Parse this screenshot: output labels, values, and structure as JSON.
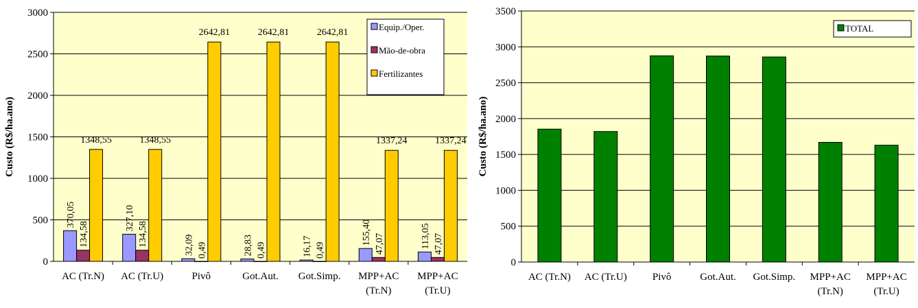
{
  "chart_data": [
    {
      "type": "bar",
      "ylabel": "Custo (R$/ha.ano)",
      "ylim": [
        0,
        3000
      ],
      "yticks": [
        "0",
        "500",
        "1000",
        "1500",
        "2000",
        "2500",
        "3000"
      ],
      "grid": true,
      "legend_position": "top-right",
      "categories": [
        [
          "AC (Tr.N)"
        ],
        [
          "AC (Tr.U)"
        ],
        [
          "Pivô"
        ],
        [
          "Got.Aut."
        ],
        [
          "Got.Simp."
        ],
        [
          "MPP+AC",
          "(Tr.N)"
        ],
        [
          "MPP+AC",
          "(Tr.U)"
        ]
      ],
      "series": [
        {
          "name": "Equip./Oper.",
          "color": "#9999ff",
          "values": [
            370.05,
            327.1,
            32.09,
            28.83,
            16.17,
            155.4,
            113.05
          ],
          "labels": [
            "370,05",
            "327,10",
            "32,09",
            "28,83",
            "16,17",
            "155,40",
            "113,05"
          ]
        },
        {
          "name": "Mão-de-obra",
          "color": "#993366",
          "values": [
            134.58,
            134.58,
            0.49,
            0.49,
            0.49,
            47.07,
            47.07
          ],
          "labels": [
            "134,58",
            "134,58",
            "0,49",
            "0,49",
            "0,49",
            "47,07",
            "47,07"
          ]
        },
        {
          "name": "Fertilizantes",
          "color": "#ffcc00",
          "values": [
            1348.55,
            1348.55,
            2642.81,
            2642.81,
            2642.81,
            1337.24,
            1337.24
          ],
          "labels": [
            "1348,55",
            "1348,55",
            "2642,81",
            "2642,81",
            "2642,81",
            "1337,24",
            "1337,24"
          ]
        }
      ]
    },
    {
      "type": "bar",
      "ylabel": "Custo (R$/ha.ano)",
      "ylim": [
        0,
        3500
      ],
      "yticks": [
        "0",
        "500",
        "1000",
        "1500",
        "2000",
        "2500",
        "3000",
        "3500"
      ],
      "grid": true,
      "legend_position": "top-right",
      "categories": [
        [
          "AC (Tr.N)"
        ],
        [
          "AC (Tr.U)"
        ],
        [
          "Pivô"
        ],
        [
          "Got.Aut."
        ],
        [
          "Got.Simp."
        ],
        [
          "MPP+AC",
          "(Tr.N)"
        ],
        [
          "MPP+AC",
          "(Tr.U)"
        ]
      ],
      "series": [
        {
          "name": "TOTAL",
          "color": "#008000",
          "values": [
            1853,
            1820,
            2875,
            2872,
            2859,
            1669,
            1629
          ]
        }
      ]
    }
  ]
}
